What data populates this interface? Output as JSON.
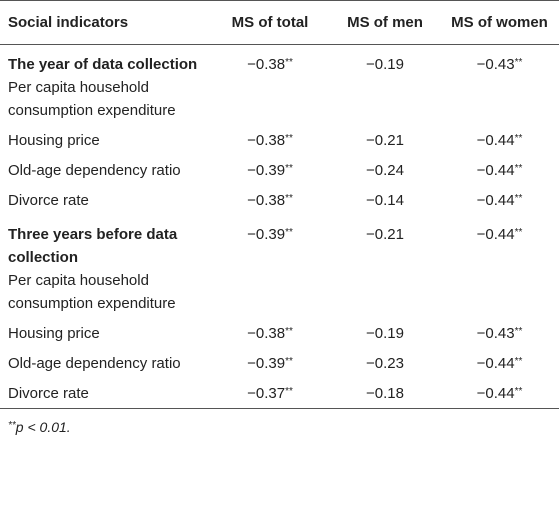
{
  "table": {
    "header": [
      "Social indicators",
      "MS of total",
      "MS of men",
      "MS of women"
    ],
    "rows": [
      {
        "heading": "The year of data collection",
        "label": "Per capita household consumption expenditure",
        "cells": [
          {
            "text": "−0.38",
            "mark": "**"
          },
          {
            "text": "−0.19",
            "mark": ""
          },
          {
            "text": "−0.43",
            "mark": "**"
          }
        ]
      },
      {
        "label": "Housing price",
        "cells": [
          {
            "text": "−0.38",
            "mark": "**"
          },
          {
            "text": "−0.21",
            "mark": ""
          },
          {
            "text": "−0.44",
            "mark": "**"
          }
        ]
      },
      {
        "label": "Old-age dependency ratio",
        "cells": [
          {
            "text": "−0.39",
            "mark": "**"
          },
          {
            "text": "−0.24",
            "mark": ""
          },
          {
            "text": "−0.44",
            "mark": "**"
          }
        ]
      },
      {
        "label": "Divorce rate",
        "cells": [
          {
            "text": "−0.38",
            "mark": "**"
          },
          {
            "text": "−0.14",
            "mark": ""
          },
          {
            "text": "−0.44",
            "mark": "**"
          }
        ]
      },
      {
        "heading": "Three years before data collection",
        "label": "Per capita household consumption expenditure",
        "cells": [
          {
            "text": "−0.39",
            "mark": "**"
          },
          {
            "text": "−0.21",
            "mark": ""
          },
          {
            "text": "−0.44",
            "mark": "**"
          }
        ]
      },
      {
        "label": "Housing price",
        "cells": [
          {
            "text": "−0.38",
            "mark": "**"
          },
          {
            "text": "−0.19",
            "mark": ""
          },
          {
            "text": "−0.43",
            "mark": "**"
          }
        ]
      },
      {
        "label": "Old-age dependency ratio",
        "cells": [
          {
            "text": "−0.39",
            "mark": "**"
          },
          {
            "text": "−0.23",
            "mark": ""
          },
          {
            "text": "−0.44",
            "mark": "**"
          }
        ]
      },
      {
        "label": "Divorce rate",
        "cells": [
          {
            "text": "−0.37",
            "mark": "**"
          },
          {
            "text": "−0.18",
            "mark": ""
          },
          {
            "text": "−0.44",
            "mark": "**"
          }
        ]
      }
    ],
    "footnote": {
      "mark": "**",
      "text": "p < 0.01."
    }
  }
}
